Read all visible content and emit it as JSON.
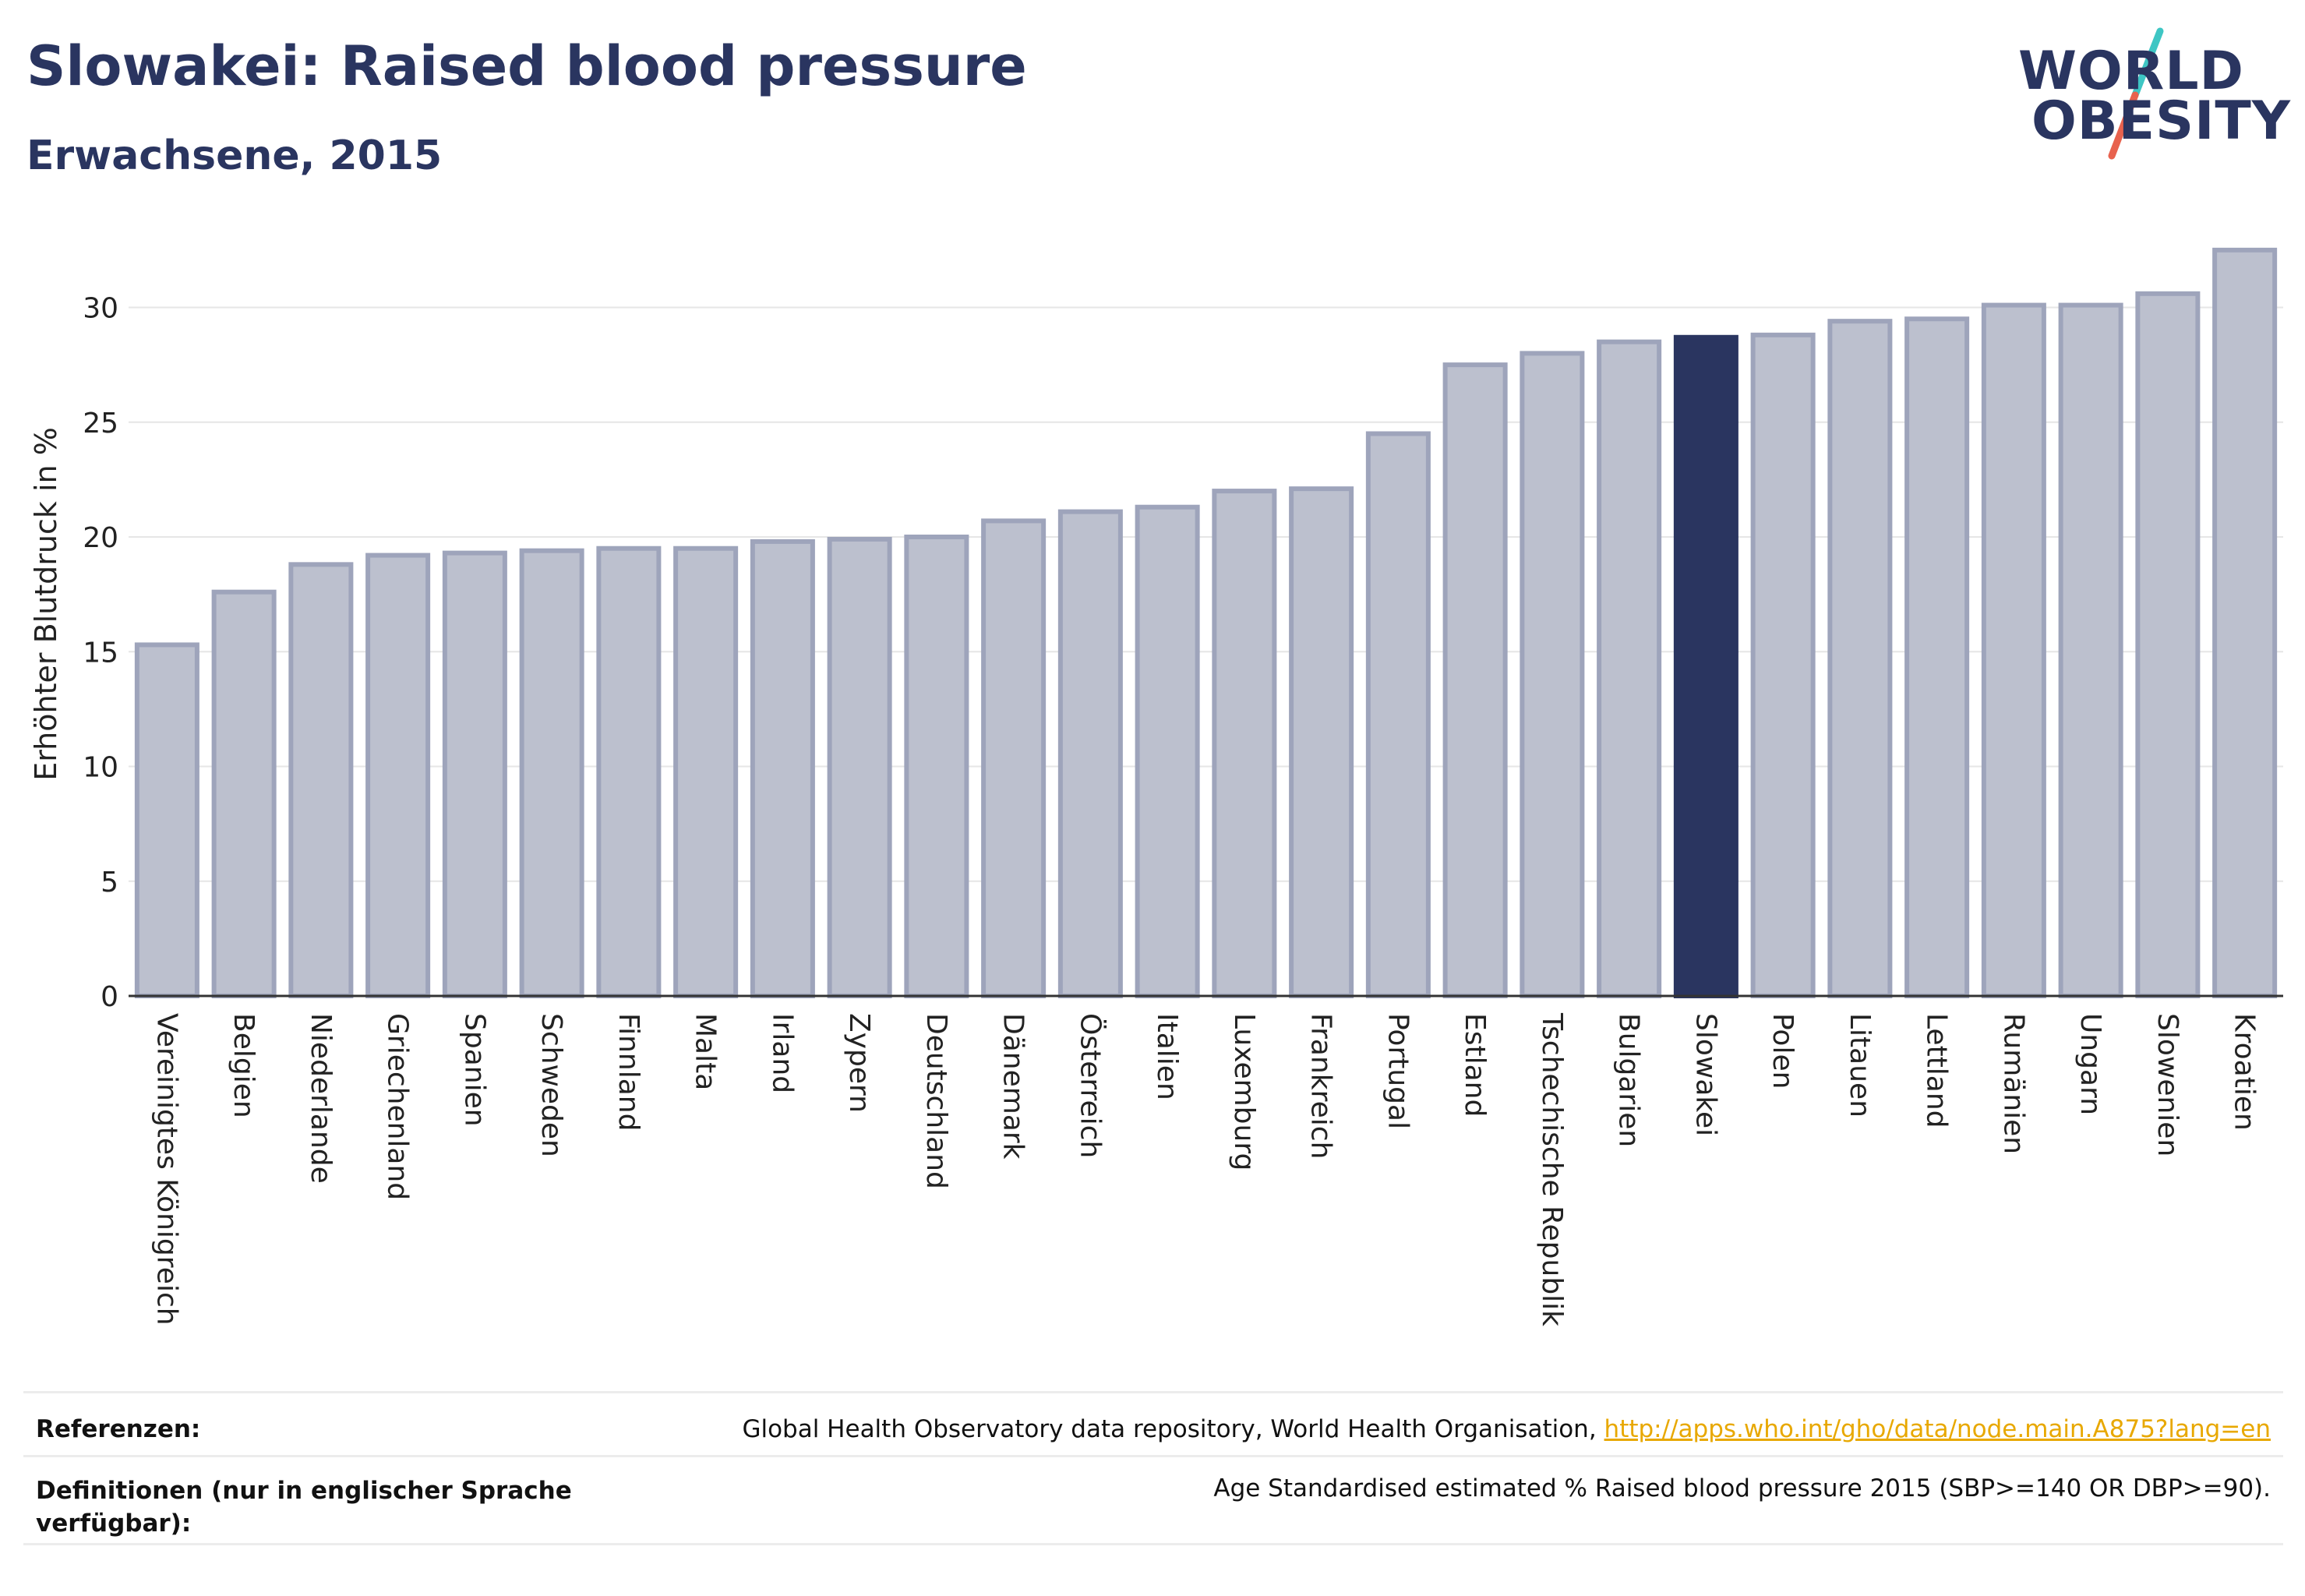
{
  "header": {
    "title": "Slowakei: Raised blood pressure",
    "subtitle": "Erwachsene, 2015"
  },
  "logo": {
    "line1": "WORLD",
    "line2": "OBESITY",
    "accent_colors": [
      "#3ec6c4",
      "#e8624e"
    ]
  },
  "chart_data": {
    "type": "bar",
    "ylabel": "Erhöhter Blutdruck in %",
    "ylim": [
      0,
      33
    ],
    "yticks": [
      0,
      5,
      10,
      15,
      20,
      25,
      30
    ],
    "grid": true,
    "highlight": "Slowakei",
    "colors": {
      "bar": "#bcc0ce",
      "bar_edge": "#9ea4bb",
      "highlight": "#2a3560"
    },
    "categories": [
      "Vereinigtes Königreich",
      "Belgien",
      "Niederlande",
      "Griechenland",
      "Spanien",
      "Schweden",
      "Finnland",
      "Malta",
      "Irland",
      "Zypern",
      "Deutschland",
      "Dänemark",
      "Österreich",
      "Italien",
      "Luxemburg",
      "Frankreich",
      "Portugal",
      "Estland",
      "Tschechische Republik",
      "Bulgarien",
      "Slowakei",
      "Polen",
      "Litauen",
      "Lettland",
      "Rumänien",
      "Ungarn",
      "Slowenien",
      "Kroatien"
    ],
    "values": [
      15.3,
      17.6,
      18.8,
      19.2,
      19.3,
      19.4,
      19.5,
      19.5,
      19.8,
      19.9,
      20.0,
      20.7,
      21.1,
      21.3,
      22.0,
      22.1,
      24.5,
      27.5,
      28.0,
      28.5,
      28.7,
      28.8,
      29.4,
      29.5,
      30.1,
      30.1,
      30.6,
      32.5
    ]
  },
  "footer": {
    "references_label": "Referenzen:",
    "references_text": "Global Health Observatory data repository, World Health Organisation, ",
    "references_link": "http://apps.who.int/gho/data/node.main.A875?lang=en",
    "definitions_label": "Definitionen (nur in englischer Sprache verfügbar):",
    "definitions_text": "Age Standardised estimated % Raised blood pressure 2015 (SBP>=140 OR DBP>=90)."
  }
}
